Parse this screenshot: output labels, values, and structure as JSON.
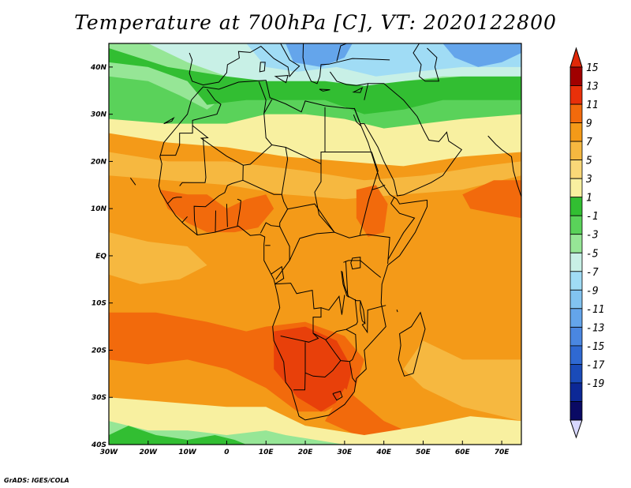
{
  "title": "Temperature at 700hPa [C], VT: 2020122800",
  "credit": "GrADS: IGES/COLA",
  "map": {
    "lon_range": [
      -30,
      75
    ],
    "lat_range": [
      -40,
      45
    ],
    "lon_ticks": [
      "30W",
      "20W",
      "10W",
      "0",
      "10E",
      "20E",
      "30E",
      "40E",
      "50E",
      "60E",
      "70E"
    ],
    "lat_ticks": [
      "40N",
      "30N",
      "20N",
      "10N",
      "EQ",
      "10S",
      "20S",
      "30S",
      "40S"
    ],
    "lon_tick_values": [
      -30,
      -20,
      -10,
      0,
      10,
      20,
      30,
      40,
      50,
      60,
      70
    ],
    "lat_tick_values": [
      40,
      30,
      20,
      10,
      0,
      -10,
      -20,
      -30,
      -40
    ]
  },
  "colorbar": {
    "labels": [
      "15",
      "13",
      "11",
      "9",
      "7",
      "5",
      "3",
      "1",
      "-1",
      "-3",
      "-5",
      "-7",
      "-9",
      "-11",
      "-13",
      "-15",
      "-17",
      "-19"
    ],
    "colors": [
      "#a00000",
      "#e8300a",
      "#f26a0c",
      "#f49a18",
      "#f6b840",
      "#fad878",
      "#f8f0a0",
      "#32be32",
      "#5ad25a",
      "#96e696",
      "#c8f0e6",
      "#a0dcf5",
      "#82c3f0",
      "#64a5eb",
      "#4a87e1",
      "#2f69d2",
      "#1a4bb9",
      "#0c2896",
      "#0a0a64"
    ],
    "overflow_colors": {
      "high": "#e02808",
      "low": "#d8d8ff"
    }
  },
  "colors": {
    "very_warm": "#e8400a",
    "warm": "#f26a0c",
    "mid_warm": "#f49a18",
    "light_warm": "#f6b840",
    "pale": "#f8f0a0",
    "green": "#32be32",
    "lgreen": "#5ad25a",
    "pgreen": "#96e696",
    "cyan": "#c8f0e6",
    "lblue": "#a0dcf5",
    "blue": "#64a5eb"
  }
}
